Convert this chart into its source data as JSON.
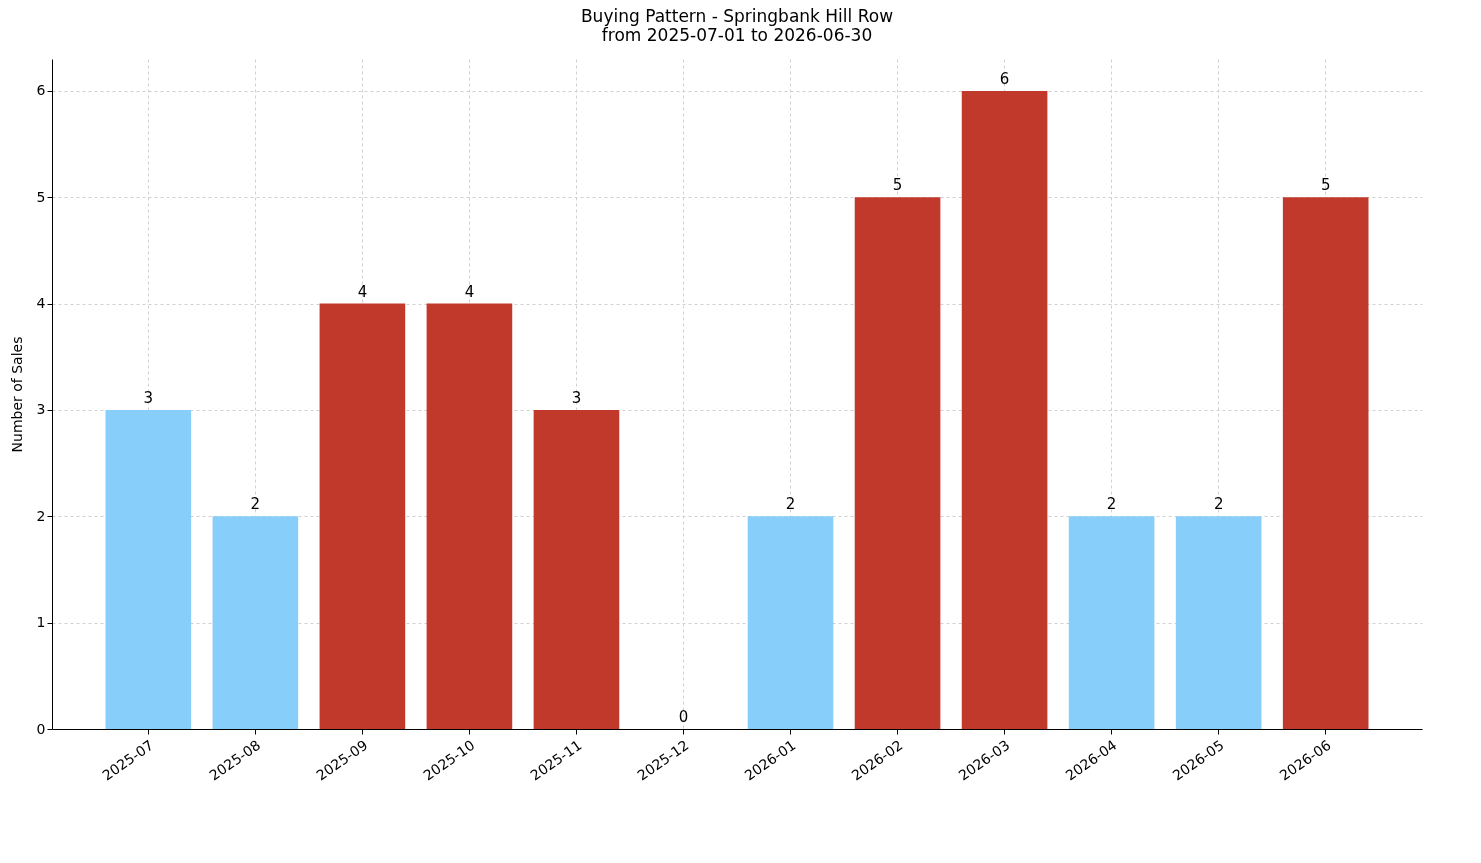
{
  "chart_data": {
    "type": "bar",
    "title": "Buying Pattern - Springbank Hill Row",
    "subtitle": "from 2025-07-01 to 2026-06-30",
    "ylabel": "Number of Sales",
    "categories": [
      "2025-07",
      "2025-08",
      "2025-09",
      "2025-10",
      "2025-11",
      "2025-12",
      "2026-01",
      "2026-02",
      "2026-03",
      "2026-04",
      "2026-05",
      "2026-06"
    ],
    "values": [
      3,
      2,
      4,
      4,
      3,
      0,
      2,
      5,
      6,
      2,
      2,
      5
    ],
    "colors": [
      "#87cefa",
      "#87cefa",
      "#c0392b",
      "#c0392b",
      "#c0392b",
      "#87cefa",
      "#87cefa",
      "#c0392b",
      "#c0392b",
      "#87cefa",
      "#87cefa",
      "#c0392b"
    ],
    "ylim": [
      0,
      6.3
    ],
    "yticks": [
      0,
      1,
      2,
      3,
      4,
      5,
      6
    ],
    "grid": true,
    "data_labels": true
  }
}
